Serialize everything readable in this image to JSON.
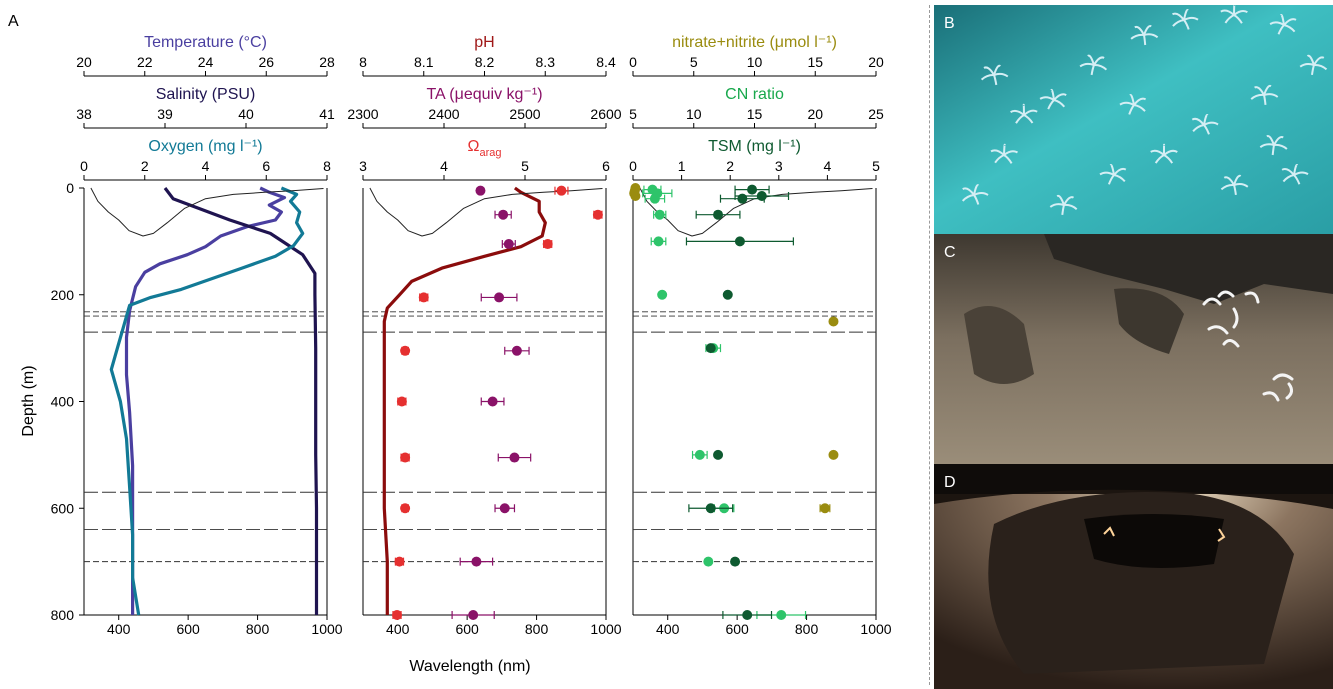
{
  "panel_label": "A",
  "chart_data": [
    {
      "type": "line",
      "panel": "left",
      "y_axis": {
        "label": "Depth (m)",
        "range": [
          0,
          800
        ],
        "ticks": [
          0,
          200,
          400,
          600,
          800
        ],
        "inverted": true
      },
      "x_axes": [
        {
          "label": "Temperature (°C)",
          "range": [
            20,
            28
          ],
          "ticks": [
            20,
            22,
            24,
            26,
            28
          ],
          "color": "#4a3fa0"
        },
        {
          "label": "Salinity (PSU)",
          "range": [
            38,
            41
          ],
          "ticks": [
            38,
            39,
            40,
            41
          ],
          "color": "#1f1450"
        },
        {
          "label": "Oxygen (mg l⁻¹)",
          "range": [
            0,
            8
          ],
          "ticks": [
            0,
            2,
            4,
            6,
            8
          ],
          "color": "#127a96"
        },
        {
          "label": "Wavelength (nm)",
          "range": [
            300,
            1000
          ],
          "ticks": [
            400,
            600,
            800,
            1000
          ],
          "color": "#000000"
        }
      ],
      "series": [
        {
          "color": "#4a3fa0",
          "axis": 0,
          "points": [
            [
              25.8,
              0
            ],
            [
              26.1,
              8
            ],
            [
              26.6,
              18
            ],
            [
              26.1,
              32
            ],
            [
              26.5,
              45
            ],
            [
              26.3,
              60
            ],
            [
              25.4,
              72
            ],
            [
              24.5,
              90
            ],
            [
              24.0,
              110
            ],
            [
              23.4,
              125
            ],
            [
              22.5,
              142
            ],
            [
              22.0,
              158
            ],
            [
              21.7,
              185
            ],
            [
              21.5,
              230
            ],
            [
              21.4,
              280
            ],
            [
              21.4,
              350
            ],
            [
              21.5,
              420
            ],
            [
              21.6,
              520
            ],
            [
              21.6,
              620
            ],
            [
              21.6,
              720
            ],
            [
              21.6,
              800
            ]
          ]
        },
        {
          "color": "#1f1450",
          "axis": 1,
          "points": [
            [
              39.0,
              0
            ],
            [
              39.1,
              20
            ],
            [
              39.8,
              60
            ],
            [
              40.3,
              85
            ],
            [
              40.5,
              105
            ],
            [
              40.7,
              125
            ],
            [
              40.85,
              160
            ],
            [
              40.85,
              200
            ],
            [
              40.86,
              300
            ],
            [
              40.86,
              400
            ],
            [
              40.86,
              500
            ],
            [
              40.87,
              600
            ],
            [
              40.87,
              700
            ],
            [
              40.87,
              800
            ]
          ]
        },
        {
          "color": "#127a96",
          "axis": 2,
          "points": [
            [
              6.5,
              0
            ],
            [
              7.0,
              12
            ],
            [
              6.8,
              25
            ],
            [
              7.1,
              45
            ],
            [
              7.0,
              65
            ],
            [
              7.2,
              85
            ],
            [
              6.9,
              108
            ],
            [
              6.3,
              128
            ],
            [
              5.2,
              150
            ],
            [
              4.2,
              170
            ],
            [
              3.2,
              190
            ],
            [
              2.2,
              205
            ],
            [
              1.5,
              220
            ],
            [
              1.3,
              260
            ],
            [
              1.1,
              300
            ],
            [
              0.9,
              340
            ],
            [
              1.2,
              400
            ],
            [
              1.4,
              470
            ],
            [
              1.5,
              560
            ],
            [
              1.6,
              650
            ],
            [
              1.6,
              730
            ],
            [
              1.8,
              800
            ]
          ]
        },
        {
          "color": "#222222",
          "axis": 3,
          "points": [
            [
              320,
              0
            ],
            [
              340,
              25
            ],
            [
              370,
              45
            ],
            [
              400,
              60
            ],
            [
              430,
              80
            ],
            [
              470,
              90
            ],
            [
              500,
              85
            ],
            [
              540,
              65
            ],
            [
              590,
              38
            ],
            [
              650,
              20
            ],
            [
              730,
              12
            ],
            [
              820,
              8
            ],
            [
              900,
              5
            ],
            [
              990,
              1
            ]
          ]
        }
      ],
      "reference_lines": [
        {
          "depth": 232,
          "style": "short-dash"
        },
        {
          "depth": 240,
          "style": "short-dash"
        },
        {
          "depth": 270,
          "style": "long-dash"
        },
        {
          "depth": 570,
          "style": "long-dash"
        },
        {
          "depth": 640,
          "style": "long-dash"
        },
        {
          "depth": 700,
          "style": "short-dash"
        }
      ]
    },
    {
      "type": "scatter",
      "panel": "middle",
      "y_axis": {
        "label": "Depth (m)",
        "range": [
          0,
          800
        ],
        "inverted": true
      },
      "x_axes": [
        {
          "label": "pH",
          "range": [
            8.0,
            8.4
          ],
          "ticks": [
            8.0,
            8.1,
            8.2,
            8.3,
            8.4
          ],
          "color": "#a01818"
        },
        {
          "label": "TA (μequiv kg⁻¹)",
          "range": [
            2300,
            2600
          ],
          "ticks": [
            2300,
            2400,
            2500,
            2600
          ],
          "color": "#8a1268"
        },
        {
          "label": "Ω",
          "sub": "arag",
          "range": [
            3,
            6
          ],
          "ticks": [
            3,
            4,
            5,
            6
          ],
          "color": "#e53030"
        },
        {
          "label": "Wavelength (nm)",
          "range": [
            300,
            1000
          ],
          "ticks": [
            400,
            600,
            800,
            1000
          ],
          "color": "#000000"
        }
      ],
      "lines": [
        {
          "color": "#8b0c0c",
          "axis": 0,
          "points": [
            [
              8.25,
              0
            ],
            [
              8.26,
              8
            ],
            [
              8.29,
              25
            ],
            [
              8.29,
              45
            ],
            [
              8.3,
              65
            ],
            [
              8.295,
              90
            ],
            [
              8.26,
              110
            ],
            [
              8.2,
              128
            ],
            [
              8.13,
              150
            ],
            [
              8.08,
              175
            ],
            [
              8.06,
              200
            ],
            [
              8.04,
              225
            ],
            [
              8.035,
              250
            ],
            [
              8.035,
              300
            ],
            [
              8.035,
              400
            ],
            [
              8.035,
              500
            ],
            [
              8.035,
              600
            ],
            [
              8.04,
              700
            ],
            [
              8.04,
              800
            ]
          ]
        },
        {
          "color": "#222222",
          "axis": 3,
          "points": [
            [
              320,
              0
            ],
            [
              340,
              25
            ],
            [
              370,
              45
            ],
            [
              400,
              60
            ],
            [
              430,
              80
            ],
            [
              470,
              90
            ],
            [
              500,
              85
            ],
            [
              540,
              65
            ],
            [
              590,
              38
            ],
            [
              650,
              20
            ],
            [
              730,
              12
            ],
            [
              820,
              8
            ],
            [
              900,
              5
            ],
            [
              990,
              1
            ]
          ]
        }
      ],
      "series": [
        {
          "color": "#e53030",
          "axis": 2,
          "points": [
            [
              5.45,
              5,
              0.08
            ],
            [
              5.9,
              50,
              0.05
            ],
            [
              5.28,
              105,
              0.05
            ],
            [
              3.75,
              205,
              0.05
            ],
            [
              3.52,
              305,
              0.04
            ],
            [
              3.48,
              400,
              0.05
            ],
            [
              3.52,
              505,
              0.05
            ],
            [
              3.52,
              600,
              0.04
            ],
            [
              3.45,
              700,
              0.05
            ],
            [
              3.42,
              800,
              0.05
            ]
          ]
        },
        {
          "color": "#8a1268",
          "axis": 1,
          "points": [
            [
              2445,
              5,
              0
            ],
            [
              2473,
              50,
              10
            ],
            [
              2480,
              105,
              8
            ],
            [
              2468,
              205,
              22
            ],
            [
              2490,
              305,
              15
            ],
            [
              2460,
              400,
              14
            ],
            [
              2487,
              505,
              20
            ],
            [
              2475,
              600,
              12
            ],
            [
              2440,
              700,
              20
            ],
            [
              2436,
              800,
              26
            ]
          ]
        }
      ],
      "reference_lines": [
        {
          "depth": 232,
          "style": "short-dash"
        },
        {
          "depth": 240,
          "style": "short-dash"
        },
        {
          "depth": 270,
          "style": "long-dash"
        },
        {
          "depth": 570,
          "style": "long-dash"
        },
        {
          "depth": 640,
          "style": "long-dash"
        },
        {
          "depth": 700,
          "style": "short-dash"
        }
      ]
    },
    {
      "type": "scatter",
      "panel": "right",
      "y_axis": {
        "label": "Depth (m)",
        "range": [
          0,
          800
        ],
        "inverted": true
      },
      "x_axes": [
        {
          "label": "nitrate+nitrite (μmol l⁻¹)",
          "range": [
            0,
            20
          ],
          "ticks": [
            0,
            5,
            10,
            15,
            20
          ],
          "color": "#9a8c10"
        },
        {
          "label": "CN ratio",
          "range": [
            5,
            25
          ],
          "ticks": [
            5,
            10,
            15,
            20,
            25
          ],
          "color": "#18a84c"
        },
        {
          "label": "TSM (mg l⁻¹)",
          "range": [
            0,
            5
          ],
          "ticks": [
            0,
            1,
            2,
            3,
            4,
            5
          ],
          "color": "#0e5a30"
        },
        {
          "label": "Wavelength (nm)",
          "range": [
            300,
            1000
          ],
          "ticks": [
            400,
            600,
            800,
            1000
          ],
          "color": "#000000"
        }
      ],
      "lines": [
        {
          "color": "#222222",
          "axis": 3,
          "points": [
            [
              320,
              0
            ],
            [
              340,
              25
            ],
            [
              370,
              45
            ],
            [
              400,
              60
            ],
            [
              430,
              80
            ],
            [
              470,
              90
            ],
            [
              500,
              85
            ],
            [
              540,
              65
            ],
            [
              590,
              38
            ],
            [
              650,
              20
            ],
            [
              730,
              12
            ],
            [
              820,
              8
            ],
            [
              900,
              5
            ],
            [
              990,
              1
            ]
          ]
        }
      ],
      "series": [
        {
          "color": "#9a8c10",
          "axis": 0,
          "points": [
            [
              0.2,
              0,
              0
            ],
            [
              0.15,
              5,
              0
            ],
            [
              0.1,
              10,
              0
            ],
            [
              0.2,
              15,
              0
            ],
            [
              16.5,
              250,
              0
            ],
            [
              16.5,
              500,
              0
            ],
            [
              15.8,
              600,
              0.4
            ]
          ]
        },
        {
          "color": "#2ec46a",
          "axis": 1,
          "points": [
            [
              6.6,
              3,
              0.7
            ],
            [
              7.0,
              10,
              1.2
            ],
            [
              6.8,
              20,
              0.8
            ],
            [
              7.2,
              50,
              0.5
            ],
            [
              7.1,
              100,
              0.6
            ],
            [
              7.4,
              200,
              0
            ],
            [
              11.6,
              300,
              0.6
            ],
            [
              10.5,
              500,
              0.6
            ],
            [
              12.5,
              600,
              0.8
            ],
            [
              11.2,
              700,
              0
            ],
            [
              17.2,
              800,
              2.0
            ]
          ]
        },
        {
          "color": "#0e5a30",
          "axis": 2,
          "points": [
            [
              2.45,
              3,
              0.35
            ],
            [
              2.65,
              15,
              0.55
            ],
            [
              2.25,
              20,
              0.45
            ],
            [
              1.75,
              50,
              0.45
            ],
            [
              2.2,
              100,
              1.1
            ],
            [
              1.95,
              200,
              0
            ],
            [
              1.6,
              300,
              0
            ],
            [
              1.75,
              500,
              0
            ],
            [
              1.6,
              600,
              0.45
            ],
            [
              2.1,
              700,
              0
            ],
            [
              2.35,
              800,
              0.5
            ]
          ]
        }
      ],
      "reference_lines": [
        {
          "depth": 232,
          "style": "short-dash"
        },
        {
          "depth": 240,
          "style": "short-dash"
        },
        {
          "depth": 270,
          "style": "long-dash"
        },
        {
          "depth": 570,
          "style": "long-dash"
        },
        {
          "depth": 640,
          "style": "long-dash"
        },
        {
          "depth": 700,
          "style": "short-dash"
        }
      ]
    }
  ],
  "photos": [
    {
      "letter": "B",
      "colors": {
        "base": "#1f8c8e",
        "light": "#49cfd0",
        "fauna": "#cfe9f0"
      }
    },
    {
      "letter": "C",
      "colors": {
        "base": "#5e5142",
        "light": "#a59783",
        "fauna": "#ffffff"
      }
    },
    {
      "letter": "D",
      "colors": {
        "base": "#3b2a20",
        "light": "#e8d8c0",
        "fauna": "#ffe6b0"
      }
    }
  ]
}
